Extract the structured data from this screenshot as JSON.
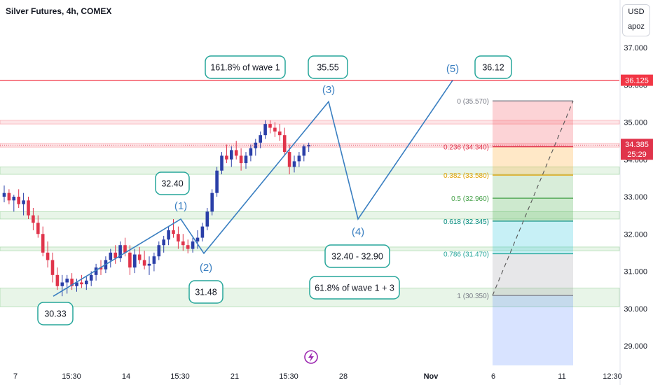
{
  "header": {
    "title": "Silver Futures, 4h, COMEX",
    "currency": "USD",
    "user": "apoz"
  },
  "colors": {
    "up": "#2a3fa8",
    "down": "#e0344b",
    "wave": "#3a7fc1",
    "resistance": "#f23645",
    "zone_green": "#c8e6c9"
  },
  "icons": [
    "lightning-icon"
  ],
  "chart_data": {
    "type": "candlestick",
    "title": "Silver Futures, 4h, COMEX",
    "ylim": [
      28.5,
      37.4
    ],
    "y_ticks": [
      "37.000",
      "36.000",
      "35.000",
      "34.000",
      "33.000",
      "32.000",
      "31.000",
      "30.000",
      "29.000"
    ],
    "x_tick_labels": [
      "7",
      "15:30",
      "14",
      "15:30",
      "21",
      "15:30",
      "28",
      "Nov",
      "6",
      "11",
      "12:30"
    ],
    "price_labels": {
      "resistance": "36.125",
      "last_price": "34.385",
      "countdown": "25:29"
    },
    "candles": [
      [
        33.0,
        33.3,
        32.85,
        33.1
      ],
      [
        33.1,
        33.2,
        32.8,
        32.9
      ],
      [
        32.9,
        33.05,
        32.6,
        33.0
      ],
      [
        33.0,
        33.2,
        32.7,
        32.8
      ],
      [
        32.8,
        33.1,
        32.5,
        32.9
      ],
      [
        32.9,
        33.0,
        32.4,
        32.5
      ],
      [
        32.5,
        32.7,
        32.1,
        32.3
      ],
      [
        32.3,
        32.5,
        31.9,
        32.0
      ],
      [
        32.0,
        32.2,
        31.4,
        31.5
      ],
      [
        31.5,
        31.8,
        31.1,
        31.3
      ],
      [
        31.3,
        31.5,
        30.7,
        30.9
      ],
      [
        30.9,
        31.1,
        30.5,
        30.6
      ],
      [
        30.6,
        30.9,
        30.33,
        30.7
      ],
      [
        30.7,
        30.9,
        30.4,
        30.8
      ],
      [
        30.8,
        30.95,
        30.5,
        30.6
      ],
      [
        30.6,
        30.8,
        30.45,
        30.7
      ],
      [
        30.7,
        30.9,
        30.55,
        30.65
      ],
      [
        30.65,
        30.85,
        30.5,
        30.75
      ],
      [
        30.75,
        31.0,
        30.6,
        30.9
      ],
      [
        30.9,
        31.2,
        30.75,
        31.1
      ],
      [
        31.1,
        31.3,
        30.9,
        31.05
      ],
      [
        31.05,
        31.4,
        30.95,
        31.3
      ],
      [
        31.3,
        31.6,
        31.1,
        31.5
      ],
      [
        31.5,
        31.7,
        31.2,
        31.35
      ],
      [
        31.35,
        31.8,
        31.25,
        31.7
      ],
      [
        31.7,
        31.9,
        31.4,
        31.5
      ],
      [
        31.5,
        31.7,
        30.9,
        31.1
      ],
      [
        31.1,
        31.6,
        30.95,
        31.45
      ],
      [
        31.45,
        31.65,
        31.2,
        31.3
      ],
      [
        31.3,
        31.55,
        31.05,
        31.15
      ],
      [
        31.15,
        31.4,
        30.9,
        31.2
      ],
      [
        31.2,
        31.5,
        31.0,
        31.4
      ],
      [
        31.4,
        31.8,
        31.3,
        31.7
      ],
      [
        31.7,
        31.95,
        31.5,
        31.85
      ],
      [
        31.85,
        32.2,
        31.7,
        32.1
      ],
      [
        32.1,
        32.4,
        31.9,
        32.0
      ],
      [
        32.0,
        32.2,
        31.6,
        31.8
      ],
      [
        31.8,
        32.0,
        31.55,
        31.7
      ],
      [
        31.7,
        31.85,
        31.48,
        31.6
      ],
      [
        31.6,
        31.9,
        31.5,
        31.8
      ],
      [
        31.8,
        32.1,
        31.6,
        31.9
      ],
      [
        31.9,
        32.3,
        31.8,
        32.2
      ],
      [
        32.2,
        32.7,
        32.1,
        32.6
      ],
      [
        32.6,
        33.2,
        32.5,
        33.1
      ],
      [
        33.1,
        33.8,
        33.0,
        33.7
      ],
      [
        33.7,
        34.2,
        33.6,
        34.1
      ],
      [
        34.1,
        34.4,
        33.9,
        34.0
      ],
      [
        34.0,
        34.35,
        33.8,
        34.25
      ],
      [
        34.25,
        34.5,
        34.0,
        34.1
      ],
      [
        34.1,
        34.3,
        33.7,
        33.9
      ],
      [
        33.9,
        34.2,
        33.75,
        34.1
      ],
      [
        34.1,
        34.4,
        33.95,
        34.3
      ],
      [
        34.3,
        34.55,
        34.1,
        34.45
      ],
      [
        34.45,
        34.75,
        34.3,
        34.65
      ],
      [
        34.65,
        35.05,
        34.55,
        34.95
      ],
      [
        34.95,
        35.05,
        34.7,
        34.85
      ],
      [
        34.85,
        35.0,
        34.6,
        34.75
      ],
      [
        34.75,
        34.95,
        34.5,
        34.65
      ],
      [
        34.65,
        34.85,
        34.1,
        34.2
      ],
      [
        34.2,
        34.4,
        33.6,
        33.8
      ],
      [
        33.8,
        34.1,
        33.65,
        33.95
      ],
      [
        33.95,
        34.2,
        33.8,
        34.1
      ],
      [
        34.1,
        34.4,
        33.95,
        34.35
      ],
      [
        34.35,
        34.45,
        34.2,
        34.385
      ]
    ],
    "zones": [
      {
        "from": 35.05,
        "to": 34.95,
        "color": "red"
      },
      {
        "from": 34.43,
        "to": 34.33,
        "color": "red"
      },
      {
        "from": 33.8,
        "to": 33.6,
        "color": "green"
      },
      {
        "from": 32.6,
        "to": 32.4,
        "color": "green"
      },
      {
        "from": 31.65,
        "to": 31.55,
        "color": "green"
      },
      {
        "from": 30.55,
        "to": 30.05,
        "color": "green"
      }
    ],
    "resistance_level": 36.125,
    "wave_path": [
      {
        "label": "",
        "x": "9 15:30",
        "y": 30.33
      },
      {
        "label": "(1)",
        "x": "15 15:30",
        "y": 32.4
      },
      {
        "label": "(2)",
        "x": "17",
        "y": 31.48
      },
      {
        "label": "(3)",
        "x": "25 12:00",
        "y": 35.55
      },
      {
        "label": "(4)",
        "x": "28 08:00",
        "y": 32.4
      },
      {
        "label": "(5)",
        "x": "Nov 2",
        "y": 36.12
      }
    ],
    "fibonacci": {
      "levels": [
        {
          "ratio": "0",
          "price": "35.570",
          "value": 35.57
        },
        {
          "ratio": "0.236",
          "price": "34.340",
          "value": 34.34
        },
        {
          "ratio": "0.382",
          "price": "33.580",
          "value": 33.58
        },
        {
          "ratio": "0.5",
          "price": "32.960",
          "value": 32.96
        },
        {
          "ratio": "0.618",
          "price": "32.345",
          "value": 32.345
        },
        {
          "ratio": "0.786",
          "price": "31.470",
          "value": 31.47
        },
        {
          "ratio": "1",
          "price": "30.350",
          "value": 30.35
        }
      ]
    },
    "annotations": {
      "wave1_target": "161.8% of wave 1",
      "wave3_price": "35.55",
      "wave5_price": "36.12",
      "wave1_price": "32.40",
      "wave2_price": "31.48",
      "start_price": "30.33",
      "wave4_range": "32.40 - 32.90",
      "wave4_note": "61.8% of wave 1 + 3"
    }
  }
}
